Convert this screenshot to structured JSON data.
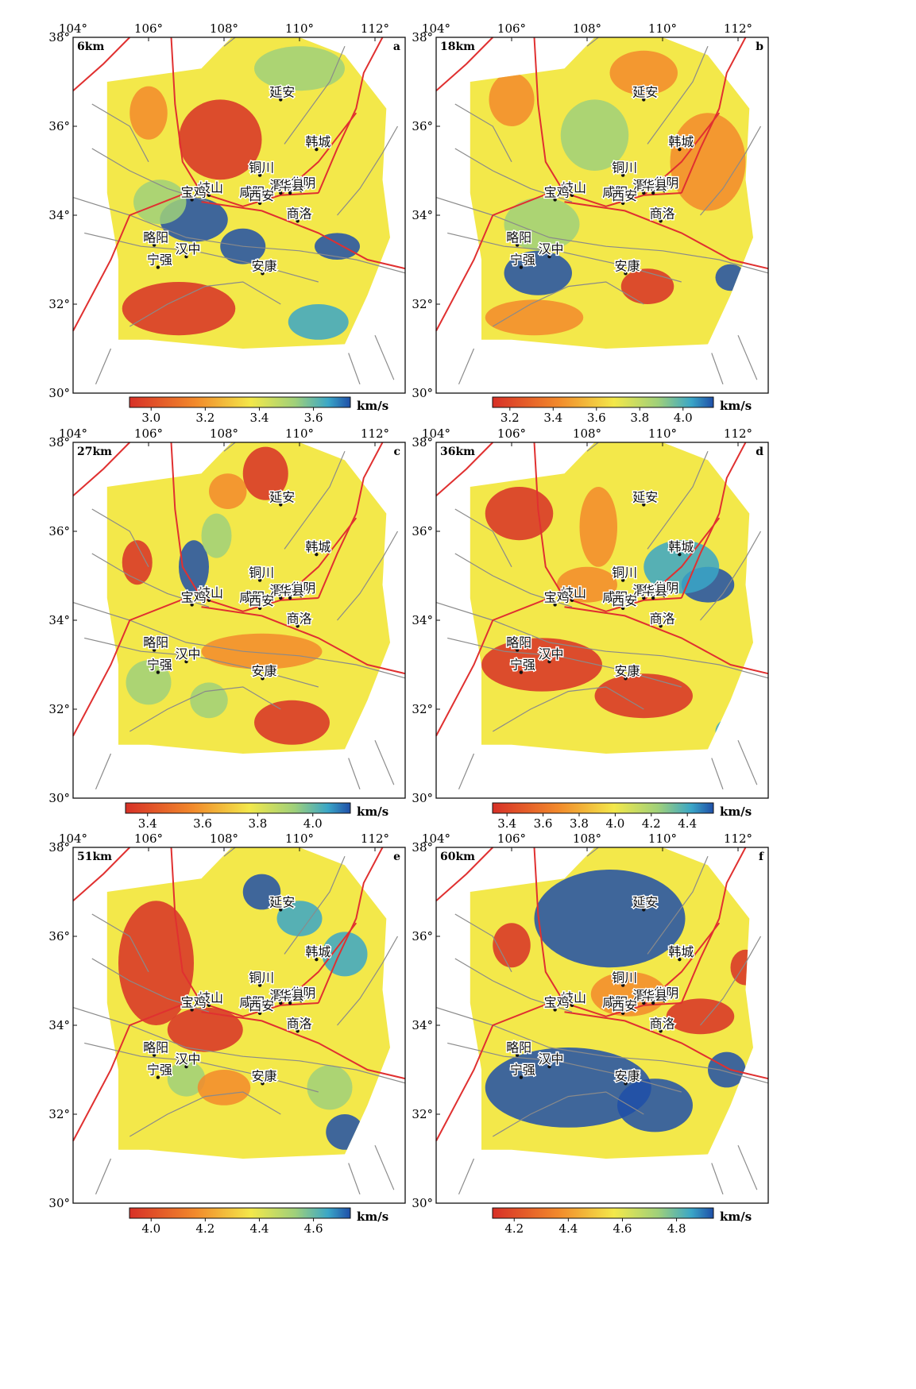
{
  "lon_labels": [
    "104°",
    "106°",
    "108°",
    "110°",
    "112°"
  ],
  "lat_labels": [
    "38°",
    "36°",
    "34°",
    "32°",
    "30°"
  ],
  "unit": "km/s",
  "cities": [
    {
      "name": "延安",
      "lon": 109.5,
      "lat": 36.6
    },
    {
      "name": "韩城",
      "lon": 110.45,
      "lat": 35.48
    },
    {
      "name": "铜川",
      "lon": 108.95,
      "lat": 34.9
    },
    {
      "name": "岐山",
      "lon": 107.6,
      "lat": 34.45
    },
    {
      "name": "咸阳",
      "lon": 108.7,
      "lat": 34.35
    },
    {
      "name": "渭南",
      "lon": 109.5,
      "lat": 34.5
    },
    {
      "name": "华阴",
      "lon": 110.05,
      "lat": 34.55
    },
    {
      "name": "宝鸡",
      "lon": 107.15,
      "lat": 34.35
    },
    {
      "name": "西安",
      "lon": 108.95,
      "lat": 34.27
    },
    {
      "name": "华县",
      "lon": 109.75,
      "lat": 34.5
    },
    {
      "name": "商洛",
      "lon": 109.95,
      "lat": 33.87
    },
    {
      "name": "略阳",
      "lon": 106.15,
      "lat": 33.33
    },
    {
      "name": "汉中",
      "lon": 107.0,
      "lat": 33.07
    },
    {
      "name": "宁强",
      "lon": 106.25,
      "lat": 32.83
    },
    {
      "name": "安康",
      "lon": 109.02,
      "lat": 32.69
    }
  ],
  "panels": [
    {
      "depth": "6km",
      "letter": "a",
      "ticks": [
        "3.0",
        "3.2",
        "3.4",
        "3.6"
      ]
    },
    {
      "depth": "18km",
      "letter": "b",
      "ticks": [
        "3.2",
        "3.4",
        "3.6",
        "3.8",
        "4.0"
      ]
    },
    {
      "depth": "27km",
      "letter": "c",
      "ticks": [
        "3.4",
        "3.6",
        "3.8",
        "4.0"
      ]
    },
    {
      "depth": "36km",
      "letter": "d",
      "ticks": [
        "3.4",
        "3.6",
        "3.8",
        "4.0",
        "4.2",
        "4.4"
      ]
    },
    {
      "depth": "51km",
      "letter": "e",
      "ticks": [
        "4.0",
        "4.2",
        "4.4",
        "4.6"
      ]
    },
    {
      "depth": "60km",
      "letter": "f",
      "ticks": [
        "4.2",
        "4.4",
        "4.6",
        "4.8"
      ]
    }
  ],
  "colors": {
    "red": "#d73027",
    "orange": "#f28a2b",
    "yellow": "#f3e84a",
    "green": "#9fd07a",
    "cyan": "#3aa6c7",
    "blue": "#1f4fa8",
    "fault_gray": "#8a8a8a",
    "fault_red": "#e03030"
  }
}
